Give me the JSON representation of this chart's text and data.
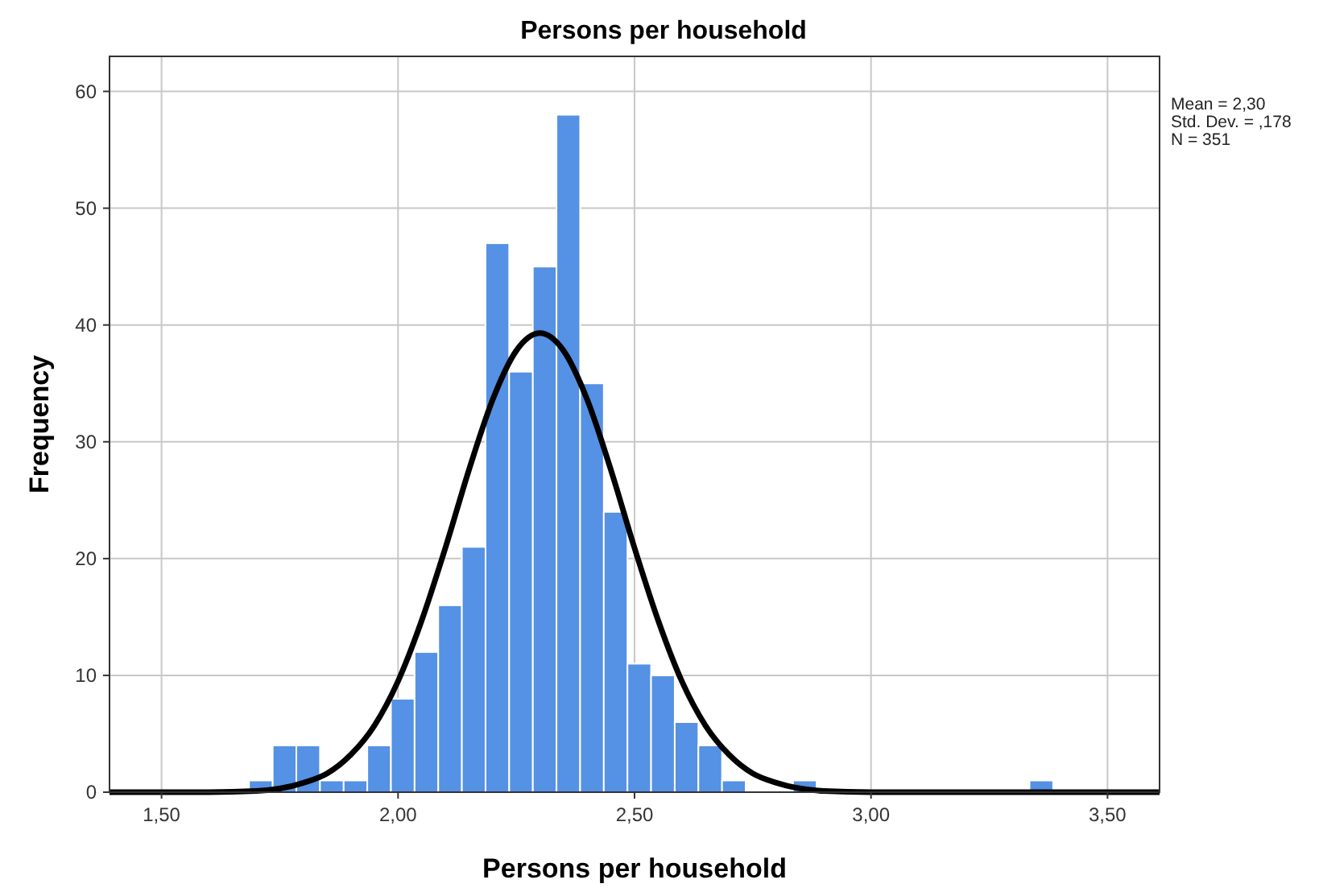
{
  "chart_data": {
    "type": "histogram",
    "title": "Persons per household",
    "xlabel": "Persons per household",
    "ylabel": "Frequency",
    "bins": [
      1.685,
      1.735,
      1.785,
      1.835,
      1.885,
      1.935,
      1.985,
      2.035,
      2.085,
      2.135,
      2.185,
      2.235,
      2.285,
      2.335,
      2.385,
      2.435,
      2.485,
      2.535,
      2.585,
      2.635,
      2.685,
      2.735,
      2.785,
      2.835,
      2.885,
      2.935,
      2.985,
      3.035,
      3.085,
      3.135,
      3.185,
      3.235,
      3.285,
      3.335,
      3.385
    ],
    "values": [
      1,
      4,
      4,
      1,
      1,
      4,
      8,
      12,
      16,
      21,
      47,
      36,
      45,
      58,
      35,
      24,
      11,
      10,
      6,
      4,
      1,
      0,
      0,
      1,
      0,
      0,
      0,
      0,
      0,
      0,
      0,
      0,
      0,
      1
    ],
    "color": "#5591e4",
    "series": [
      {
        "type": "line",
        "color": "#000000",
        "x": [
          1.39,
          1.6,
          1.7,
          1.8,
          1.85,
          1.9,
          1.95,
          2.0,
          2.05,
          2.1,
          2.15,
          2.2,
          2.25,
          2.3,
          2.35,
          2.4,
          2.45,
          2.5,
          2.55,
          2.6,
          2.65,
          2.7,
          2.75,
          2.8,
          2.9,
          3.0,
          3.61
        ],
        "values": [
          0,
          0,
          0.1,
          0.8,
          1.6,
          3.2,
          5.7,
          9.5,
          14.7,
          20.9,
          27.6,
          33.6,
          37.8,
          39.3,
          37.8,
          33.6,
          27.6,
          20.9,
          14.7,
          9.5,
          5.7,
          3.2,
          1.6,
          0.8,
          0.1,
          0,
          0
        ]
      }
    ],
    "xlim": [
      1.39,
      3.61
    ],
    "xticks": [
      {
        "value": 1.5,
        "label": "1,50"
      },
      {
        "value": 2,
        "label": "2,00"
      },
      {
        "value": 2.5,
        "label": "2,50"
      },
      {
        "value": 3,
        "label": "3,00"
      },
      {
        "value": 3.5,
        "label": "3,50"
      }
    ],
    "ylim": [
      0,
      63
    ],
    "yticks": [
      0,
      10,
      20,
      30,
      40,
      50,
      60
    ],
    "grid": true,
    "marker": "none",
    "line_style": "solid",
    "annotations": [
      "Mean = 2,30",
      "Std. Dev. = ,178",
      "N = 351"
    ]
  }
}
